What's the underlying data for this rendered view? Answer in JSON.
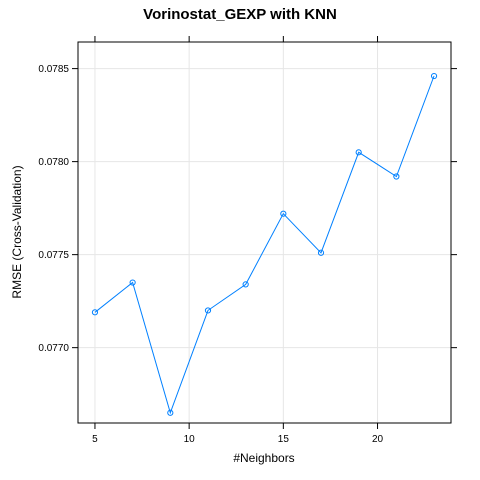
{
  "chart_data": {
    "type": "line",
    "title": "Vorinostat_GEXP with KNN",
    "xlabel": "#Neighbors",
    "ylabel": "RMSE (Cross-Validation)",
    "x": [
      5,
      7,
      9,
      11,
      13,
      15,
      17,
      19,
      21,
      23
    ],
    "series": [
      {
        "values": [
          0.07719,
          0.07735,
          0.07665,
          0.0772,
          0.07734,
          0.07772,
          0.07751,
          0.07805,
          0.07792,
          0.07846
        ],
        "color": "#0080ff"
      }
    ],
    "xticks": [
      5,
      10,
      15,
      20
    ],
    "xtick_labels": [
      "5",
      "10",
      "15",
      "20"
    ],
    "yticks": [
      0.077,
      0.0775,
      0.078,
      0.0785
    ],
    "ytick_labels": [
      "0.0770",
      "0.0775",
      "0.0780",
      "0.0785"
    ],
    "xlim": [
      4.1,
      23.9
    ],
    "ylim": [
      0.076595,
      0.078643
    ],
    "grid": true,
    "marker": "open-circle"
  }
}
